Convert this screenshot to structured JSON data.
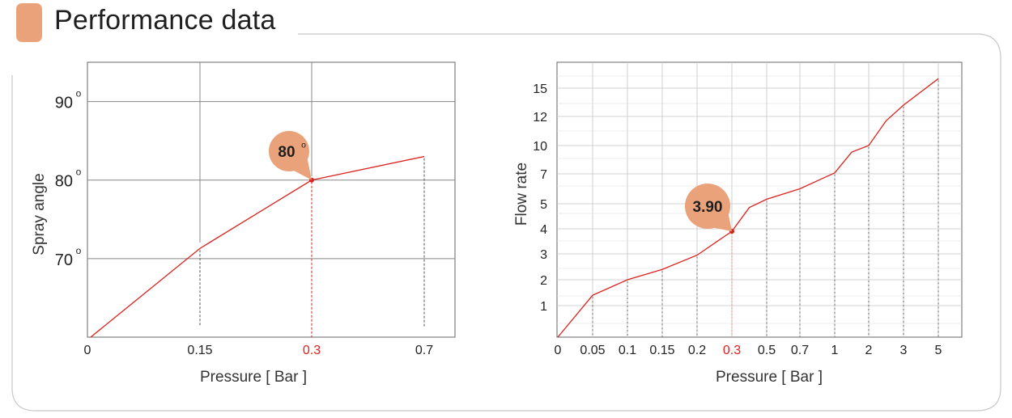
{
  "header": {
    "title": "Performance data",
    "accent_color": "#eaa27b"
  },
  "colors": {
    "line": "#d9231f",
    "grid": "#888888",
    "callout": "#eaa27b",
    "highlight_text": "#e0201c"
  },
  "chart_data": [
    {
      "type": "line",
      "xlabel": "Pressure [ Bar ]",
      "ylabel": "Spray angle",
      "x_ticks": [
        "0",
        "0.15",
        "0.3",
        "0.7"
      ],
      "x_highlight": "0.3",
      "y_ticks": [
        "70",
        "80",
        "90"
      ],
      "y_tick_suffix": "o",
      "ylim": [
        60,
        95
      ],
      "series": [
        {
          "points": [
            {
              "x": "0",
              "y": 60
            },
            {
              "x": "0.15",
              "y": 71.3
            },
            {
              "x": "0.3",
              "y": 80
            },
            {
              "x": "0.7",
              "y": 83
            }
          ]
        }
      ],
      "callout": {
        "x": "0.3",
        "y": 80,
        "label": "80",
        "suffix": "o"
      }
    },
    {
      "type": "line",
      "xlabel": "Pressure [ Bar ]",
      "ylabel": "Flow rate",
      "x_ticks": [
        "0",
        "0.05",
        "0.1",
        "0.15",
        "0.2",
        "0.3",
        "0.5",
        "0.7",
        "1",
        "2",
        "3",
        "5"
      ],
      "x_highlight": "0.3",
      "y_ticks": [
        "1",
        "2",
        "3",
        "4",
        "5",
        "7",
        "10",
        "12",
        "15"
      ],
      "series": [
        {
          "points": [
            {
              "x": 0,
              "y": 0
            },
            {
              "x": 0.05,
              "y": 1.4
            },
            {
              "x": 0.1,
              "y": 2.0
            },
            {
              "x": 0.15,
              "y": 2.4
            },
            {
              "x": 0.2,
              "y": 2.95
            },
            {
              "x": 0.3,
              "y": 3.9
            },
            {
              "x": 0.4,
              "y": 4.85
            },
            {
              "x": 0.5,
              "y": 5.3
            },
            {
              "x": 0.7,
              "y": 6.0
            },
            {
              "x": 1,
              "y": 7.1
            },
            {
              "x": 1.5,
              "y": 9.3
            },
            {
              "x": 2,
              "y": 10.0
            },
            {
              "x": 2.5,
              "y": 11.7
            },
            {
              "x": 3,
              "y": 13.2
            },
            {
              "x": 5,
              "y": 16.0
            }
          ]
        }
      ],
      "callout": {
        "x": 0.3,
        "y": 3.9,
        "label": "3.90"
      }
    }
  ]
}
